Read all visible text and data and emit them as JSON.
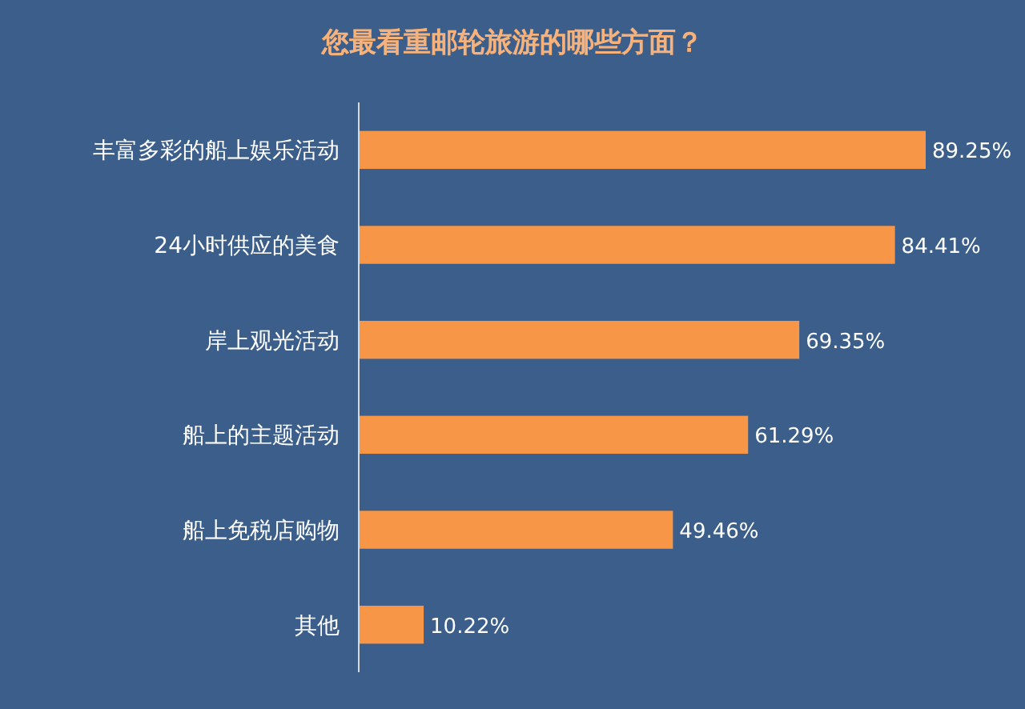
{
  "chart_data": {
    "type": "bar",
    "orientation": "horizontal",
    "title": "您最看重邮轮旅游的哪些方面？",
    "categories": [
      "丰富多彩的船上娱乐活动",
      "24小时供应的美食",
      "岸上观光活动",
      "船上的主题活动",
      "船上免税店购物",
      "其他"
    ],
    "values": [
      89.25,
      84.41,
      69.35,
      61.29,
      49.46,
      10.22
    ],
    "value_labels": [
      "89.25%",
      "84.41%",
      "69.35%",
      "61.29%",
      "49.46%",
      "10.22%"
    ],
    "color": "#f79646"
  }
}
